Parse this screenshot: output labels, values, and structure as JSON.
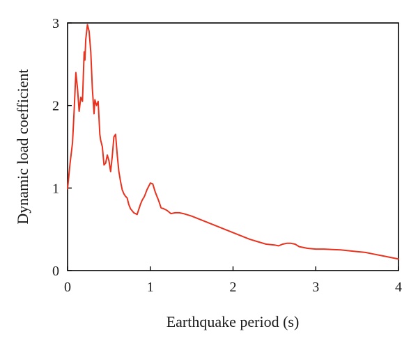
{
  "chart_data": {
    "type": "line",
    "title": "",
    "xlabel": "Earthquake period (s)",
    "ylabel": "Dynamic load coefficient",
    "xlim": [
      0,
      4
    ],
    "ylim": [
      0,
      3
    ],
    "xticks": [
      "0",
      "1",
      "2",
      "3",
      "4"
    ],
    "yticks": [
      "0",
      "1",
      "2",
      "3"
    ],
    "grid": false,
    "legend": "none",
    "series": [
      {
        "color": "#e8321e",
        "x": [
          0,
          0.03,
          0.06,
          0.08,
          0.1,
          0.12,
          0.14,
          0.16,
          0.18,
          0.2,
          0.21,
          0.22,
          0.24,
          0.26,
          0.28,
          0.3,
          0.32,
          0.33,
          0.35,
          0.37,
          0.39,
          0.4,
          0.42,
          0.44,
          0.46,
          0.48,
          0.5,
          0.52,
          0.54,
          0.56,
          0.58,
          0.6,
          0.62,
          0.64,
          0.66,
          0.68,
          0.7,
          0.72,
          0.74,
          0.76,
          0.8,
          0.84,
          0.88,
          0.9,
          0.93,
          0.96,
          1.0,
          1.03,
          1.06,
          1.1,
          1.13,
          1.16,
          1.2,
          1.25,
          1.3,
          1.35,
          1.4,
          1.5,
          1.6,
          1.7,
          1.8,
          1.9,
          2.0,
          2.1,
          2.2,
          2.3,
          2.4,
          2.5,
          2.55,
          2.6,
          2.65,
          2.7,
          2.75,
          2.8,
          2.9,
          3.0,
          3.1,
          3.2,
          3.3,
          3.4,
          3.5,
          3.6,
          3.7,
          3.8,
          3.9,
          4.0
        ],
        "y": [
          0.99,
          1.3,
          1.55,
          1.95,
          2.4,
          2.2,
          1.93,
          2.1,
          2.05,
          2.65,
          2.55,
          2.8,
          2.98,
          2.9,
          2.65,
          2.2,
          1.9,
          2.07,
          2.0,
          2.05,
          1.65,
          1.58,
          1.5,
          1.28,
          1.3,
          1.4,
          1.33,
          1.2,
          1.38,
          1.62,
          1.65,
          1.4,
          1.2,
          1.08,
          0.98,
          0.93,
          0.9,
          0.88,
          0.8,
          0.75,
          0.7,
          0.68,
          0.8,
          0.85,
          0.9,
          0.98,
          1.06,
          1.05,
          0.95,
          0.85,
          0.76,
          0.75,
          0.73,
          0.69,
          0.7,
          0.7,
          0.69,
          0.66,
          0.62,
          0.58,
          0.54,
          0.5,
          0.46,
          0.42,
          0.38,
          0.35,
          0.32,
          0.31,
          0.3,
          0.32,
          0.33,
          0.33,
          0.32,
          0.29,
          0.27,
          0.26,
          0.26,
          0.255,
          0.25,
          0.24,
          0.23,
          0.22,
          0.2,
          0.18,
          0.16,
          0.14
        ]
      }
    ]
  }
}
